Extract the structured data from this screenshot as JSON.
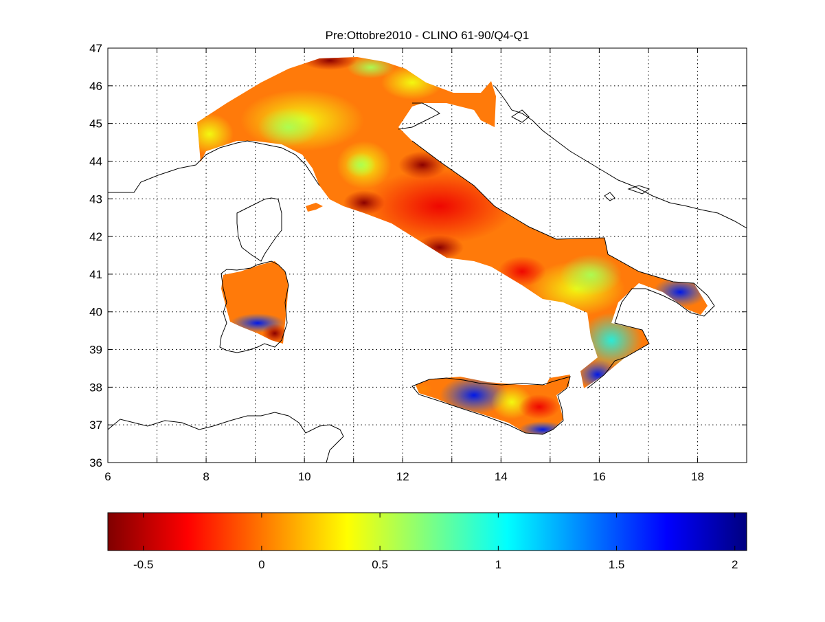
{
  "figure": {
    "title": "Pre:Ottobre2010 - CLINO 61-90/Q4-Q1"
  },
  "map": {
    "x_ticks": [
      6,
      8,
      10,
      12,
      14,
      16,
      18
    ],
    "y_ticks": [
      36,
      37,
      38,
      39,
      40,
      41,
      42,
      43,
      44,
      45,
      46,
      47
    ],
    "xlim": [
      6,
      19
    ],
    "ylim": [
      36,
      47
    ],
    "grid": true,
    "grid_style": "dotted"
  },
  "colorbar": {
    "colormap": "jet",
    "range": [
      -0.65,
      2.05
    ],
    "ticks": [
      -0.5,
      0,
      0.5,
      1,
      1.5,
      2
    ],
    "tick_labels": [
      "-0.5",
      "0",
      "0.5",
      "1",
      "1.5",
      "2"
    ],
    "placement": "bottom"
  },
  "colors": {
    "coastline": "#000000",
    "grid": "#000000",
    "background": "#ffffff"
  }
}
